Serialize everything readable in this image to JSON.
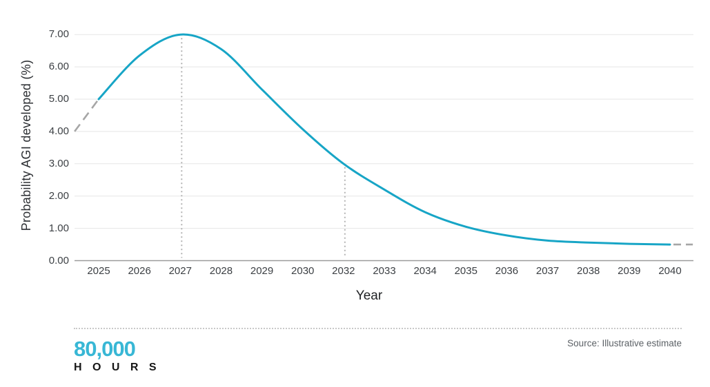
{
  "chart": {
    "y_axis_title": "Probability AGI developed (%)",
    "x_axis_title": "Year"
  },
  "footer": {
    "logo_line1": "80,000",
    "logo_line2": "H O U R S",
    "source": "Source: Illustrative estimate"
  },
  "colors": {
    "curve": "#17a5c6",
    "gridline": "#e5e5e5",
    "axis_line": "#9a9a9a",
    "dotted_guide": "#b3b3b3",
    "dashed_extension": "#a6a6a6",
    "tick_text": "#3b3f43",
    "logo_cyan": "#38b7d5",
    "source_text": "#5c6166"
  },
  "chart_data": {
    "type": "line",
    "title": "",
    "xlabel": "Year",
    "ylabel": "Probability AGI developed (%)",
    "categories": [
      "2025",
      "2026",
      "2027",
      "2028",
      "2029",
      "2030",
      "2032",
      "2033",
      "2034",
      "2035",
      "2036",
      "2037",
      "2038",
      "2039",
      "2040"
    ],
    "series": [
      {
        "name": "Probability AGI developed (%)",
        "values": [
          5.0,
          6.35,
          7.0,
          6.55,
          5.3,
          4.07,
          3.0,
          2.2,
          1.5,
          1.05,
          0.78,
          0.62,
          0.56,
          0.52,
          0.5
        ]
      }
    ],
    "ylim": [
      0,
      7
    ],
    "yticks": [
      0,
      1,
      2,
      3,
      4,
      5,
      6,
      7
    ],
    "ytick_labels": [
      "0.00",
      "1.00",
      "2.00",
      "3.00",
      "4.00",
      "5.00",
      "6.00",
      "7.00"
    ],
    "grid": true,
    "legend_position": "none",
    "annotations": {
      "vlines": [
        {
          "category": "2027",
          "top_value": 7.0
        },
        {
          "category": "2032",
          "top_value": 3.0
        }
      ],
      "dashed_lead_in": {
        "from_category_offset": -0.59,
        "from_value": 4.0,
        "to_category": "2025",
        "to_value": 5.0
      },
      "dashed_tail": {
        "from_category": "2040",
        "value": 0.5,
        "to_category_offset": 0.56
      }
    }
  }
}
